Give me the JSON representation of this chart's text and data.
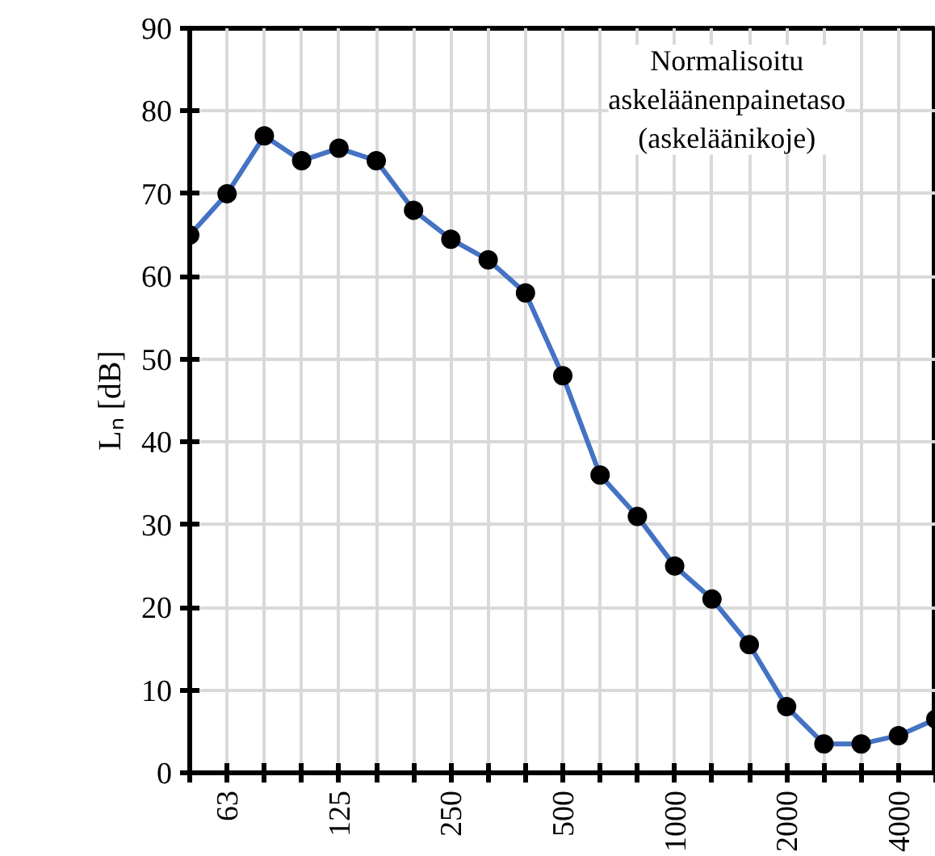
{
  "chart_data": {
    "type": "line",
    "ylabel": "Lₙ [dB]",
    "categories": [
      null,
      "63",
      null,
      null,
      "125",
      null,
      null,
      "250",
      null,
      null,
      "500",
      null,
      null,
      "1000",
      null,
      null,
      "2000",
      null,
      null,
      "4000",
      null
    ],
    "series": [
      {
        "color": "#4472c4",
        "values": [
          65,
          70,
          77,
          74,
          75.5,
          74,
          68,
          64.5,
          62,
          58,
          48,
          36,
          31,
          25,
          21,
          15.5,
          8,
          3.5,
          3.5,
          4.5,
          6.5
        ]
      }
    ],
    "ylim": [
      0,
      90
    ],
    "yticks": [
      0,
      10,
      20,
      30,
      40,
      50,
      60,
      70,
      80,
      90
    ],
    "grid": true,
    "marker": "circle",
    "line_style": "solid",
    "annotations": [
      "Normalisoitu\naskeläänenpainetaso\n(askeläänikoje)"
    ]
  }
}
